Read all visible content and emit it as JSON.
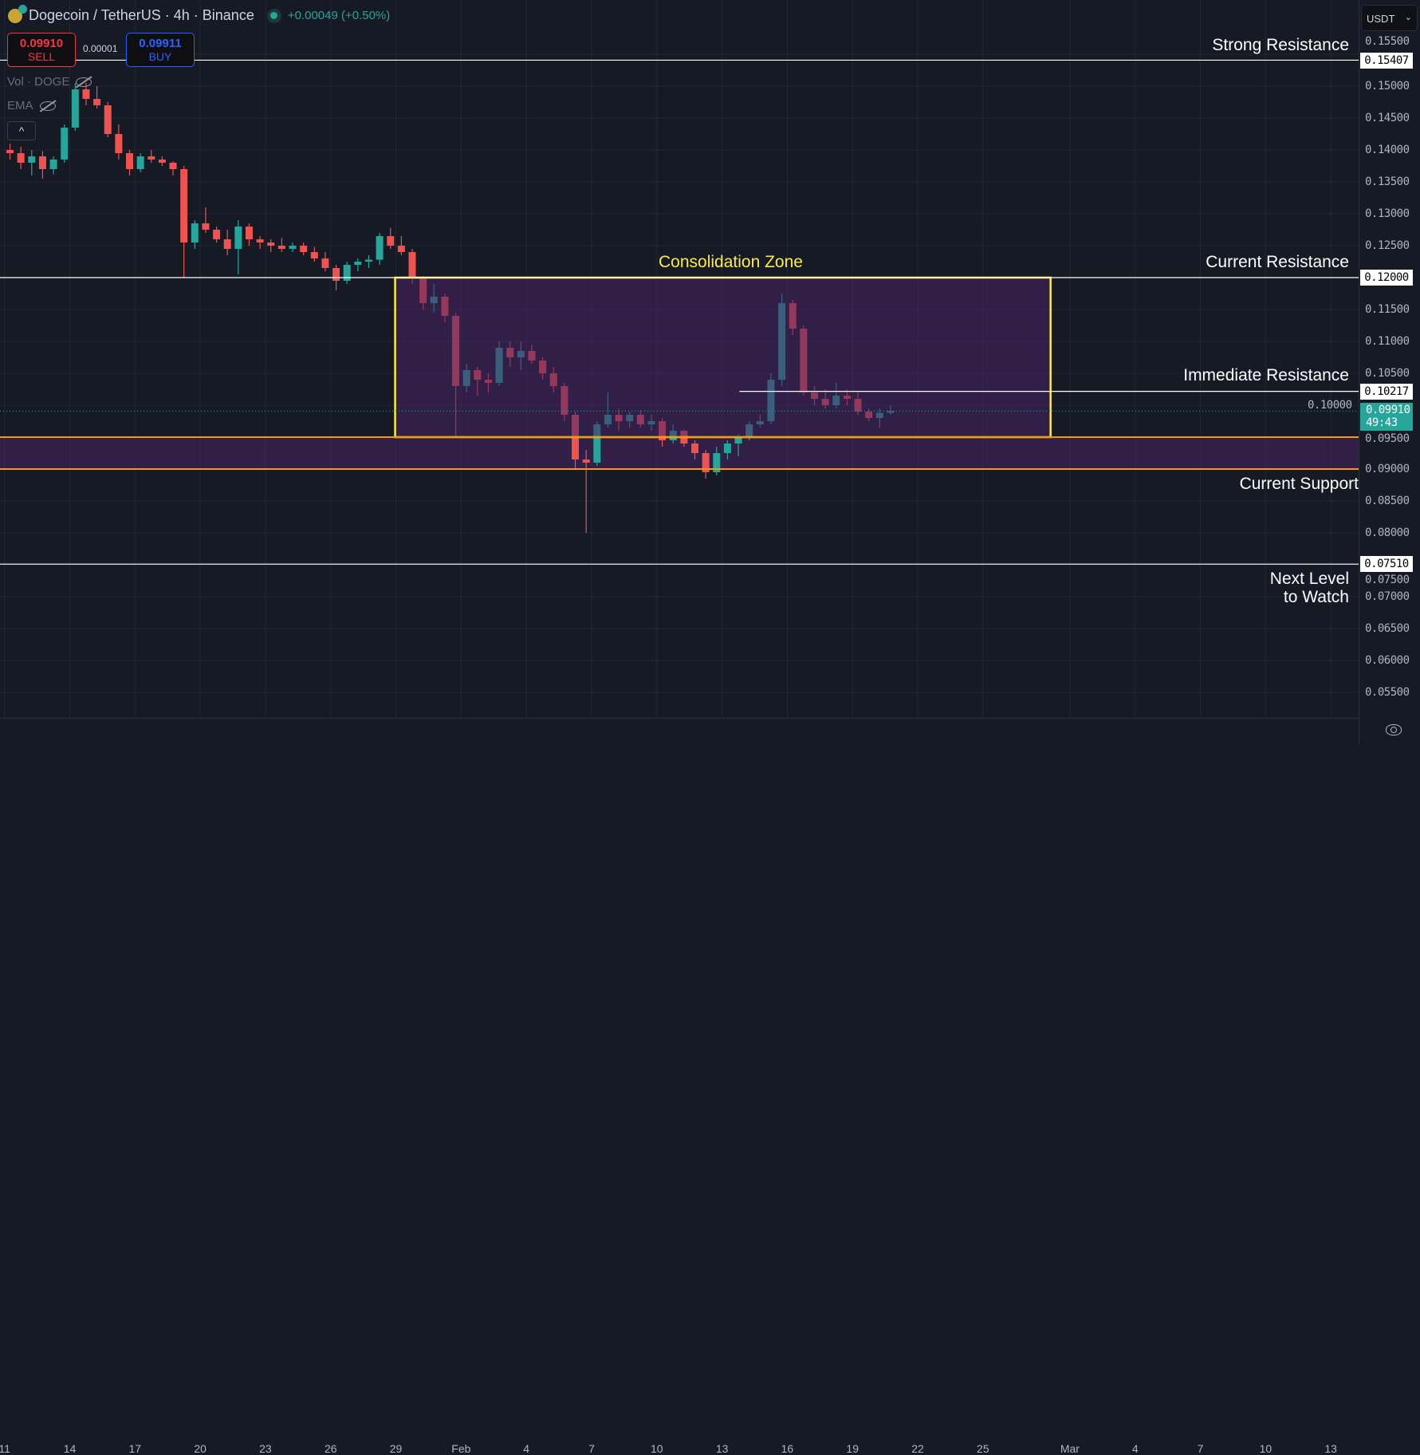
{
  "header": {
    "title": "Dogecoin / TetherUS · 4h · Binance",
    "change": "+0.00049 (+0.50%)",
    "market_status": "open"
  },
  "trade": {
    "sell_price": "0.09910",
    "sell_label": "SELL",
    "spread": "0.00001",
    "buy_price": "0.09911",
    "buy_label": "BUY"
  },
  "indicators": [
    {
      "label": "Vol · DOGE",
      "visible": false
    },
    {
      "label": "EMA",
      "visible": false
    }
  ],
  "collapse_label": "^",
  "currency": "USDT",
  "current_price": {
    "value": "0.09910",
    "countdown": "49:43"
  },
  "colors": {
    "background": "#161a25",
    "up": "#26a69a",
    "down": "#ef5350",
    "zone_border": "#ffeb3b",
    "support_line": "#ff9800",
    "zone_fill": "#4a2466",
    "level_line": "#ffffff"
  },
  "chart_data": {
    "type": "candlestick",
    "symbol": "DOGEUSDT",
    "interval": "4h",
    "ylim": [
      0.05,
      0.158
    ],
    "y_ticks": [
      "0.15500",
      "0.15000",
      "0.14500",
      "0.14000",
      "0.13500",
      "0.13000",
      "0.12500",
      "0.12000",
      "0.11500",
      "0.11000",
      "0.10500",
      "0.10000",
      "0.09500",
      "0.09000",
      "0.08500",
      "0.08000",
      "0.07500",
      "0.07000",
      "0.06500",
      "0.06000",
      "0.05500"
    ],
    "x_ticks": [
      "11",
      "14",
      "17",
      "20",
      "23",
      "26",
      "29",
      "Feb",
      "4",
      "7",
      "10",
      "13",
      "16",
      "19",
      "22",
      "25",
      "Mar",
      "4",
      "7",
      "10",
      "13"
    ],
    "grid": true,
    "candles_fields": [
      "time",
      "open",
      "high",
      "low",
      "close"
    ],
    "candles": [
      [
        "Jan 11 00:00",
        0.14,
        0.141,
        0.1385,
        0.1395
      ],
      [
        "Jan 11 12:00",
        0.1395,
        0.1405,
        0.137,
        0.138
      ],
      [
        "Jan 12 00:00",
        0.138,
        0.14,
        0.136,
        0.139
      ],
      [
        "Jan 12 12:00",
        0.139,
        0.1398,
        0.1355,
        0.137
      ],
      [
        "Jan 13 00:00",
        0.137,
        0.139,
        0.1362,
        0.1385
      ],
      [
        "Jan 13 12:00",
        0.1385,
        0.144,
        0.138,
        0.1435
      ],
      [
        "Jan 14 00:00",
        0.1435,
        0.1505,
        0.143,
        0.1495
      ],
      [
        "Jan 14 12:00",
        0.1495,
        0.1505,
        0.147,
        0.148
      ],
      [
        "Jan 15 00:00",
        0.148,
        0.15,
        0.1465,
        0.147
      ],
      [
        "Jan 15 12:00",
        0.147,
        0.1475,
        0.142,
        0.1425
      ],
      [
        "Jan 16 00:00",
        0.1425,
        0.144,
        0.1385,
        0.1395
      ],
      [
        "Jan 16 12:00",
        0.1395,
        0.14,
        0.136,
        0.137
      ],
      [
        "Jan 17 00:00",
        0.137,
        0.1395,
        0.1365,
        0.139
      ],
      [
        "Jan 17 12:00",
        0.139,
        0.14,
        0.138,
        0.1385
      ],
      [
        "Jan 18 00:00",
        0.1385,
        0.139,
        0.1375,
        0.138
      ],
      [
        "Jan 18 12:00",
        0.138,
        0.1382,
        0.136,
        0.137
      ],
      [
        "Jan 19 00:00",
        0.137,
        0.1375,
        0.12,
        0.1255
      ],
      [
        "Jan 19 12:00",
        0.1255,
        0.129,
        0.1245,
        0.1285
      ],
      [
        "Jan 20 00:00",
        0.1285,
        0.131,
        0.127,
        0.1275
      ],
      [
        "Jan 20 12:00",
        0.1275,
        0.128,
        0.1255,
        0.126
      ],
      [
        "Jan 21 00:00",
        0.126,
        0.1275,
        0.1235,
        0.1245
      ],
      [
        "Jan 21 12:00",
        0.1245,
        0.129,
        0.1205,
        0.128
      ],
      [
        "Jan 22 00:00",
        0.128,
        0.1285,
        0.125,
        0.126
      ],
      [
        "Jan 22 12:00",
        0.126,
        0.1265,
        0.1245,
        0.1255
      ],
      [
        "Jan 23 00:00",
        0.1255,
        0.126,
        0.124,
        0.125
      ],
      [
        "Jan 23 12:00",
        0.125,
        0.1262,
        0.124,
        0.1245
      ],
      [
        "Jan 24 00:00",
        0.1245,
        0.1255,
        0.124,
        0.125
      ],
      [
        "Jan 24 12:00",
        0.125,
        0.1255,
        0.1235,
        0.124
      ],
      [
        "Jan 25 00:00",
        0.124,
        0.1248,
        0.1225,
        0.123
      ],
      [
        "Jan 25 12:00",
        0.123,
        0.124,
        0.121,
        0.1215
      ],
      [
        "Jan 26 00:00",
        0.1215,
        0.122,
        0.118,
        0.1195
      ],
      [
        "Jan 26 12:00",
        0.1195,
        0.1225,
        0.119,
        0.122
      ],
      [
        "Jan 27 00:00",
        0.122,
        0.123,
        0.121,
        0.1225
      ],
      [
        "Jan 27 12:00",
        0.1225,
        0.1235,
        0.1215,
        0.1228
      ],
      [
        "Jan 28 00:00",
        0.1228,
        0.127,
        0.122,
        0.1265
      ],
      [
        "Jan 28 12:00",
        0.1265,
        0.1278,
        0.1245,
        0.125
      ],
      [
        "Jan 29 00:00",
        0.125,
        0.1265,
        0.1235,
        0.124
      ],
      [
        "Jan 29 12:00",
        0.124,
        0.1245,
        0.119,
        0.12
      ],
      [
        "Jan 30 00:00",
        0.12,
        0.1202,
        0.115,
        0.116
      ],
      [
        "Jan 30 12:00",
        0.116,
        0.119,
        0.1145,
        0.117
      ],
      [
        "Jan 31 00:00",
        0.117,
        0.1175,
        0.113,
        0.114
      ],
      [
        "Jan 31 12:00",
        0.114,
        0.1145,
        0.095,
        0.103
      ],
      [
        "Feb 1 00:00",
        0.103,
        0.1065,
        0.102,
        0.1055
      ],
      [
        "Feb 1 12:00",
        0.1055,
        0.106,
        0.1015,
        0.104
      ],
      [
        "Feb 2 00:00",
        0.104,
        0.105,
        0.102,
        0.1035
      ],
      [
        "Feb 2 12:00",
        0.1035,
        0.11,
        0.103,
        0.109
      ],
      [
        "Feb 3 00:00",
        0.109,
        0.11,
        0.106,
        0.1075
      ],
      [
        "Feb 3 12:00",
        0.1075,
        0.11,
        0.1055,
        0.1085
      ],
      [
        "Feb 4 00:00",
        0.1085,
        0.1095,
        0.1065,
        0.107
      ],
      [
        "Feb 4 12:00",
        0.107,
        0.1075,
        0.104,
        0.105
      ],
      [
        "Feb 5 00:00",
        0.105,
        0.106,
        0.102,
        0.103
      ],
      [
        "Feb 5 12:00",
        0.103,
        0.1035,
        0.0975,
        0.0985
      ],
      [
        "Feb 6 00:00",
        0.0985,
        0.099,
        0.09,
        0.0915
      ],
      [
        "Feb 6 12:00",
        0.0915,
        0.093,
        0.08,
        0.091
      ],
      [
        "Feb 7 00:00",
        0.091,
        0.0975,
        0.0905,
        0.097
      ],
      [
        "Feb 7 12:00",
        0.097,
        0.102,
        0.0965,
        0.0985
      ],
      [
        "Feb 8 00:00",
        0.0985,
        0.0995,
        0.096,
        0.0975
      ],
      [
        "Feb 8 12:00",
        0.0975,
        0.099,
        0.0965,
        0.0985
      ],
      [
        "Feb 9 00:00",
        0.0985,
        0.0992,
        0.0965,
        0.097
      ],
      [
        "Feb 9 12:00",
        0.097,
        0.0985,
        0.096,
        0.0975
      ],
      [
        "Feb 10 00:00",
        0.0975,
        0.098,
        0.0935,
        0.0945
      ],
      [
        "Feb 10 12:00",
        0.0945,
        0.097,
        0.094,
        0.096
      ],
      [
        "Feb 11 00:00",
        0.096,
        0.0962,
        0.0935,
        0.094
      ],
      [
        "Feb 11 12:00",
        0.094,
        0.0945,
        0.0915,
        0.0925
      ],
      [
        "Feb 12 00:00",
        0.0925,
        0.093,
        0.0885,
        0.0895
      ],
      [
        "Feb 12 12:00",
        0.0895,
        0.0935,
        0.089,
        0.0925
      ],
      [
        "Feb 13 00:00",
        0.0925,
        0.0945,
        0.0915,
        0.094
      ],
      [
        "Feb 13 12:00",
        0.094,
        0.0955,
        0.092,
        0.095
      ],
      [
        "Feb 14 00:00",
        0.095,
        0.0975,
        0.0945,
        0.097
      ],
      [
        "Feb 14 12:00",
        0.097,
        0.0985,
        0.0965,
        0.0975
      ],
      [
        "Feb 15 00:00",
        0.0975,
        0.105,
        0.097,
        0.104
      ],
      [
        "Feb 15 12:00",
        0.104,
        0.1175,
        0.103,
        0.116
      ],
      [
        "Feb 16 00:00",
        0.116,
        0.1165,
        0.111,
        0.112
      ],
      [
        "Feb 16 12:00",
        0.112,
        0.1125,
        0.1015,
        0.102
      ],
      [
        "Feb 17 00:00",
        0.102,
        0.103,
        0.1,
        0.101
      ],
      [
        "Feb 17 12:00",
        0.101,
        0.1025,
        0.0995,
        0.1
      ],
      [
        "Feb 18 00:00",
        0.1,
        0.1035,
        0.0995,
        0.1015
      ],
      [
        "Feb 18 12:00",
        0.1015,
        0.1025,
        0.1,
        0.101
      ],
      [
        "Feb 19 00:00",
        0.101,
        0.1022,
        0.0985,
        0.099
      ],
      [
        "Feb 19 12:00",
        0.099,
        0.0995,
        0.0975,
        0.098
      ],
      [
        "Feb 20 00:00",
        0.098,
        0.0995,
        0.0965,
        0.0988
      ],
      [
        "Feb 20 12:00",
        0.0988,
        0.1,
        0.0985,
        0.0991
      ]
    ],
    "levels": [
      {
        "name": "Strong Resistance",
        "price": "0.15407"
      },
      {
        "name": "Current Resistance",
        "price": "0.12000"
      },
      {
        "name": "Immediate Resistance",
        "price": "0.10217",
        "from": "Feb 13"
      },
      {
        "name": "Current Support",
        "range": [
          0.09,
          0.095
        ]
      },
      {
        "name_line1": "Next Level",
        "name_line2": "to Watch",
        "price": "0.07510"
      }
    ],
    "zone": {
      "label": "Consolidation Zone",
      "from": "Jan 29",
      "to": "Feb 28",
      "low": 0.095,
      "high": 0.12
    }
  }
}
